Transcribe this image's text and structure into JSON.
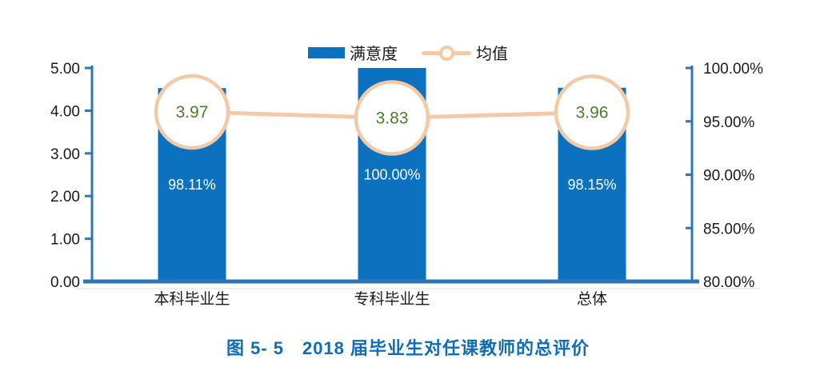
{
  "colors": {
    "bar": "#0c72c0",
    "line": "#f5c9a6",
    "axis": "#2e75b6",
    "mean_label": "#4e7b2f",
    "bar_label": "#ffffff",
    "tick_label": "#1a1a1a",
    "caption": "#0f6cb8",
    "faint_line": "#c9c9c9"
  },
  "legend": {
    "items": [
      {
        "label": "满意度",
        "marker": "bar-swatch"
      },
      {
        "label": "均值",
        "marker": "line-circle-marker"
      }
    ]
  },
  "caption": "图 5- 5　2018 届毕业生对任课教师的总评价",
  "chart_data": {
    "type": "bar",
    "subtype": "bar-line-combo",
    "title": "图 5- 5　2018 届毕业生对任课教师的总评价",
    "categories": [
      "本科毕业生",
      "专科毕业生",
      "总体"
    ],
    "series": [
      {
        "name": "满意度",
        "type": "bar",
        "axis": "right",
        "values": [
          98.11,
          100.0,
          98.15
        ],
        "labels": [
          "98.11%",
          "100.00%",
          "98.15%"
        ]
      },
      {
        "name": "均值",
        "type": "line",
        "axis": "left",
        "marker": "open-circle",
        "values": [
          3.97,
          3.83,
          3.96
        ],
        "labels": [
          "3.97",
          "3.83",
          "3.96"
        ]
      }
    ],
    "left_axis": {
      "min": 0,
      "max": 5,
      "step": 1,
      "tick_labels": [
        "0.00",
        "1.00",
        "2.00",
        "3.00",
        "4.00",
        "5.00"
      ]
    },
    "right_axis": {
      "min": 80,
      "max": 100,
      "step": 5,
      "tick_labels": [
        "80.00%",
        "85.00%",
        "90.00%",
        "95.00%",
        "100.00%"
      ]
    },
    "grid": false,
    "legend_position": "top-center"
  }
}
